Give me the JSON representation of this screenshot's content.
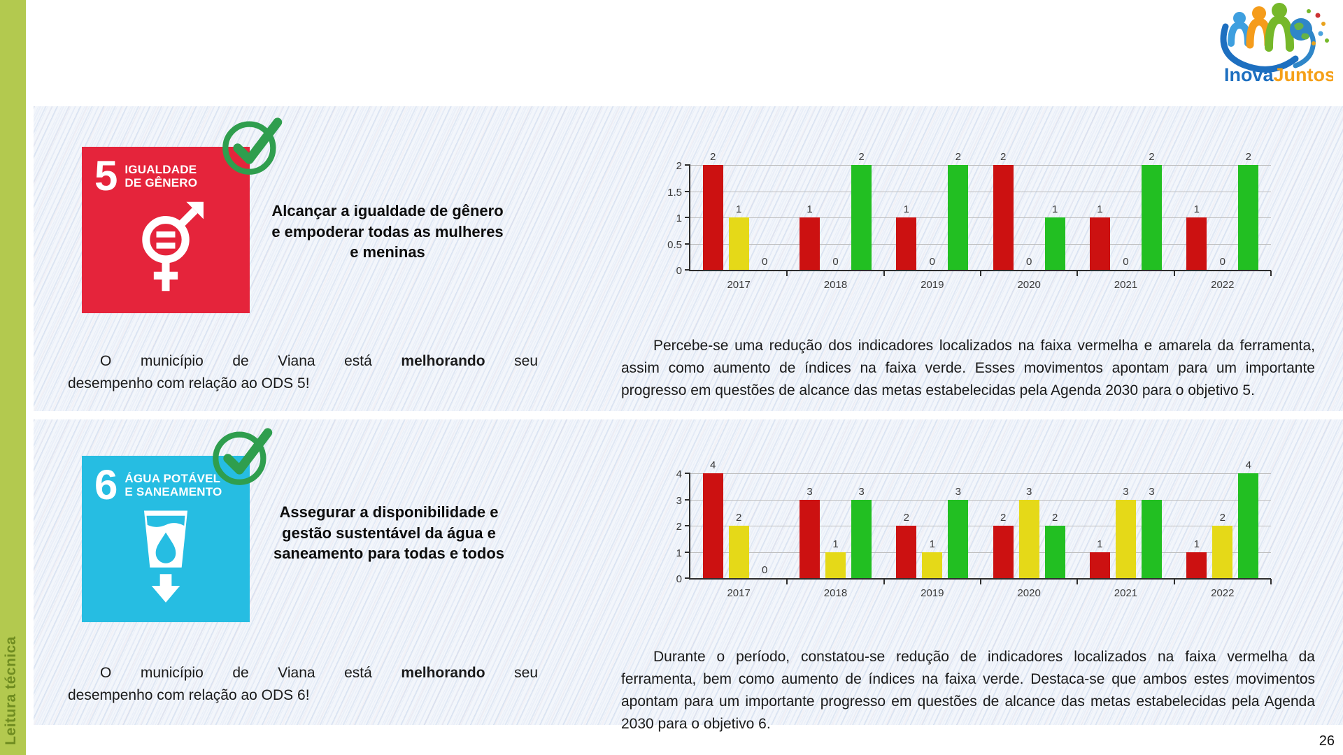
{
  "page_number": "26",
  "sidebar": {
    "label": "Leitura técnica"
  },
  "logo": {
    "inova": "Inova",
    "juntos": "Juntos"
  },
  "sections": [
    {
      "sdg_number": "5",
      "sdg_title_line1": "IGUALDADE",
      "sdg_title_line2": "DE GÊNERO",
      "sdg_color": "#e5243b",
      "goal_heading": "Alcançar a igualdade de gênero e empoderar todas as mulheres e meninas",
      "status_prefix": "O município de Viana está",
      "status_highlight": "melhorando",
      "status_line1_end": "seu",
      "status_line2": "desempenho com relação ao ODS 5!",
      "analysis": "Percebe-se uma redução dos indicadores localizados na faixa vermelha e amarela da ferramenta, assim como aumento de índices na faixa verde. Esses movimentos apontam para um importante progresso em questões de alcance das metas estabelecidas pela Agenda 2030 para o objetivo 5."
    },
    {
      "sdg_number": "6",
      "sdg_title_line1": "ÁGUA POTÁVEL",
      "sdg_title_line2": "E SANEAMENTO",
      "sdg_color": "#26bde2",
      "goal_heading": "Assegurar a disponibilidade e gestão sustentável da água e saneamento para todas e todos",
      "status_prefix": "O município de Viana está",
      "status_highlight": "melhorando",
      "status_line1_end": "seu",
      "status_line2": "desempenho com relação ao ODS 6!",
      "analysis": "Durante o período, constatou-se redução de indicadores localizados na faixa vermelha da ferramenta, bem como aumento de índices na faixa verde. Destaca-se que ambos estes movimentos apontam para um importante progresso em questões de alcance das metas estabelecidas pela Agenda 2030 para o objetivo 6."
    }
  ],
  "chart_data": [
    {
      "type": "bar",
      "title": "",
      "categories": [
        "2017",
        "2018",
        "2019",
        "2020",
        "2021",
        "2022"
      ],
      "series": [
        {
          "name": "faixa vermelha",
          "color": "#cc1111",
          "values": [
            2,
            1,
            1,
            2,
            1,
            1
          ]
        },
        {
          "name": "faixa amarela",
          "color": "#e5d918",
          "values": [
            1,
            0,
            0,
            0,
            0,
            0
          ]
        },
        {
          "name": "faixa verde",
          "color": "#22bf22",
          "values": [
            0,
            2,
            2,
            1,
            2,
            2
          ]
        }
      ],
      "xlabel": "",
      "ylabel": "",
      "ylim": [
        0,
        2
      ],
      "yticks": [
        0,
        0.5,
        1,
        1.5,
        2
      ],
      "grid": true,
      "legend": "none"
    },
    {
      "type": "bar",
      "title": "",
      "categories": [
        "2017",
        "2018",
        "2019",
        "2020",
        "2021",
        "2022"
      ],
      "series": [
        {
          "name": "faixa vermelha",
          "color": "#cc1111",
          "values": [
            4,
            3,
            2,
            2,
            1,
            1
          ]
        },
        {
          "name": "faixa amarela",
          "color": "#e5d918",
          "values": [
            2,
            1,
            1,
            3,
            3,
            2
          ]
        },
        {
          "name": "faixa verde",
          "color": "#22bf22",
          "values": [
            0,
            3,
            3,
            2,
            3,
            4
          ]
        }
      ],
      "xlabel": "",
      "ylabel": "",
      "ylim": [
        0,
        4
      ],
      "yticks": [
        0,
        1,
        2,
        3,
        4
      ],
      "grid": true,
      "legend": "none"
    }
  ]
}
